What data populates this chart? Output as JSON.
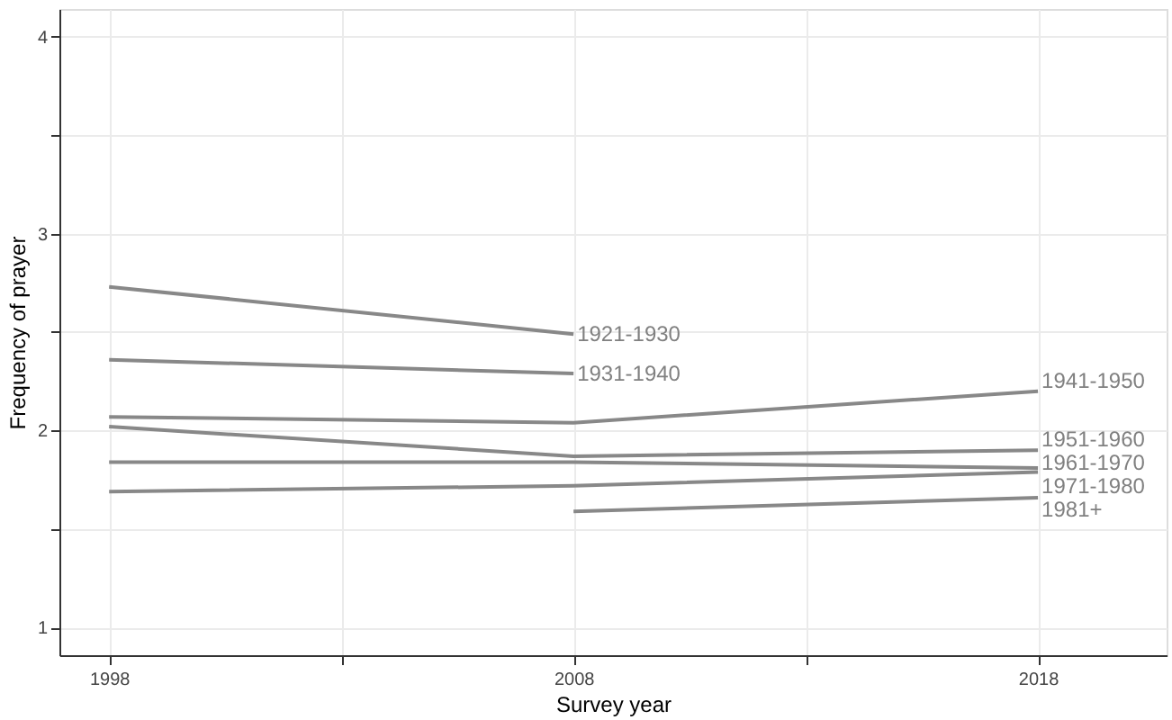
{
  "chart_data": {
    "type": "line",
    "xlabel": "Survey year",
    "ylabel": "Frequency of prayer",
    "x": [
      1998,
      2008,
      2018
    ],
    "xlim": [
      1996.93,
      2020.77
    ],
    "xticks": [
      1998,
      {
        "value": 2003,
        "label": null
      },
      2008,
      {
        "value": 2013,
        "label": null
      },
      2018
    ],
    "ylim": [
      0.86,
      4.14
    ],
    "yticks": [
      1,
      {
        "value": 1.5,
        "label": null
      },
      2,
      {
        "value": 2.5,
        "label": null
      },
      3,
      {
        "value": 3.5,
        "label": null
      },
      4
    ],
    "grid": true,
    "legend": false,
    "marker": "none",
    "line_style": "solid",
    "series": [
      {
        "name": "1921-1930",
        "color": "#888888",
        "values": [
          2.73,
          2.49,
          null
        ]
      },
      {
        "name": "1931-1940",
        "color": "#888888",
        "values": [
          2.36,
          2.29,
          null
        ]
      },
      {
        "name": "1941-1950",
        "color": "#888888",
        "values": [
          2.07,
          2.04,
          2.2
        ]
      },
      {
        "name": "1951-1960",
        "color": "#888888",
        "values": [
          2.02,
          1.87,
          1.9
        ]
      },
      {
        "name": "1961-1970",
        "color": "#888888",
        "values": [
          1.84,
          1.84,
          1.81
        ]
      },
      {
        "name": "1971-1980",
        "color": "#888888",
        "values": [
          1.69,
          1.72,
          1.79
        ]
      },
      {
        "name": "1981+",
        "color": "#888888",
        "values": [
          null,
          1.59,
          1.66
        ]
      }
    ]
  }
}
